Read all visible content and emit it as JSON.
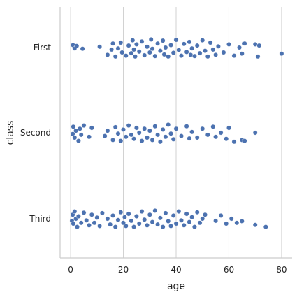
{
  "chart_data": {
    "type": "scatter",
    "style": "categorical strip plot with horizontal jitter",
    "title": "",
    "xlabel": "age",
    "ylabel": "class",
    "xlim": [
      -4,
      84
    ],
    "x_ticks": [
      0,
      20,
      40,
      60,
      80
    ],
    "categories": [
      "First",
      "Second",
      "Third"
    ],
    "grid": "vertical gridlines",
    "legend": "none",
    "marker_color": "#4c72b0",
    "series": [
      {
        "category": "First",
        "points": [
          [
            0.9,
            -0.06
          ],
          [
            1.5,
            0.02
          ],
          [
            2.3,
            -0.04
          ],
          [
            4.5,
            0.03
          ],
          [
            11,
            -0.02
          ],
          [
            14,
            0.18
          ],
          [
            15.5,
            0.05
          ],
          [
            16,
            -0.1
          ],
          [
            17,
            0.22
          ],
          [
            18,
            0.02
          ],
          [
            19,
            -0.12
          ],
          [
            19.5,
            0.12
          ],
          [
            21,
            0.2
          ],
          [
            22,
            -0.05
          ],
          [
            23,
            0.14
          ],
          [
            23.5,
            -0.18
          ],
          [
            24,
            0.05
          ],
          [
            24.5,
            0.22
          ],
          [
            25,
            -0.08
          ],
          [
            26,
            0.1
          ],
          [
            27,
            -0.15
          ],
          [
            28,
            0.19
          ],
          [
            29,
            -0.02
          ],
          [
            30,
            0.12
          ],
          [
            30.5,
            -0.2
          ],
          [
            31,
            0.03
          ],
          [
            32,
            0.21
          ],
          [
            33,
            -0.1
          ],
          [
            34,
            0.08
          ],
          [
            35,
            -0.17
          ],
          [
            35.5,
            0.17
          ],
          [
            36,
            0.0
          ],
          [
            37,
            0.22
          ],
          [
            38,
            -0.06
          ],
          [
            39,
            0.13
          ],
          [
            40,
            -0.19
          ],
          [
            41,
            0.06
          ],
          [
            42,
            0.2
          ],
          [
            43,
            -0.09
          ],
          [
            44,
            0.11
          ],
          [
            45,
            -0.14
          ],
          [
            45.5,
            0.18
          ],
          [
            46,
            0.02
          ],
          [
            47,
            0.21
          ],
          [
            48,
            -0.05
          ],
          [
            49,
            0.14
          ],
          [
            50,
            -0.18
          ],
          [
            51,
            0.08
          ],
          [
            52,
            0.22
          ],
          [
            53,
            -0.12
          ],
          [
            54,
            0.05
          ],
          [
            55,
            0.18
          ],
          [
            56,
            -0.03
          ],
          [
            58,
            0.12
          ],
          [
            60,
            -0.08
          ],
          [
            62,
            0.2
          ],
          [
            64,
            0.0
          ],
          [
            65,
            0.15
          ],
          [
            66,
            -0.1
          ],
          [
            70,
            -0.08
          ],
          [
            71,
            0.22
          ],
          [
            71.5,
            -0.05
          ],
          [
            80,
            0.15
          ]
        ]
      },
      {
        "category": "Second",
        "points": [
          [
            0.8,
            0.03
          ],
          [
            1,
            -0.15
          ],
          [
            1.5,
            0.12
          ],
          [
            2,
            -0.05
          ],
          [
            3,
            0.2
          ],
          [
            3.5,
            -0.1
          ],
          [
            4,
            0.05
          ],
          [
            5,
            -0.18
          ],
          [
            7,
            0.1
          ],
          [
            8,
            -0.12
          ],
          [
            13,
            0.08
          ],
          [
            14,
            -0.05
          ],
          [
            16,
            0.18
          ],
          [
            17,
            -0.14
          ],
          [
            18,
            0.02
          ],
          [
            19,
            0.2
          ],
          [
            20,
            -0.08
          ],
          [
            21,
            0.1
          ],
          [
            22,
            -0.18
          ],
          [
            23,
            0.05
          ],
          [
            24,
            0.15
          ],
          [
            25,
            -0.12
          ],
          [
            26,
            0.0
          ],
          [
            27,
            0.2
          ],
          [
            28,
            -0.1
          ],
          [
            29,
            0.12
          ],
          [
            30,
            -0.05
          ],
          [
            31,
            0.18
          ],
          [
            32,
            -0.16
          ],
          [
            33,
            0.05
          ],
          [
            34,
            0.22
          ],
          [
            35,
            -0.08
          ],
          [
            36,
            0.1
          ],
          [
            37,
            -0.2
          ],
          [
            38,
            0.02
          ],
          [
            39,
            0.16
          ],
          [
            40,
            -0.1
          ],
          [
            42,
            0.08
          ],
          [
            44,
            -0.16
          ],
          [
            45,
            0.14
          ],
          [
            46,
            -0.02
          ],
          [
            48,
            0.12
          ],
          [
            50,
            -0.1
          ],
          [
            52,
            0.05
          ],
          [
            54,
            -0.15
          ],
          [
            55,
            0.1
          ],
          [
            57,
            0.0
          ],
          [
            59,
            0.15
          ],
          [
            60,
            -0.12
          ],
          [
            62,
            0.22
          ],
          [
            65,
            0.18
          ],
          [
            66,
            0.2
          ],
          [
            70,
            0.0
          ]
        ]
      },
      {
        "category": "Third",
        "points": [
          [
            0.5,
            0.05
          ],
          [
            0.8,
            -0.1
          ],
          [
            1,
            0.12
          ],
          [
            1.5,
            -0.18
          ],
          [
            2,
            0.0
          ],
          [
            2.5,
            0.2
          ],
          [
            3,
            -0.06
          ],
          [
            4,
            0.1
          ],
          [
            5,
            -0.15
          ],
          [
            6,
            0.04
          ],
          [
            7,
            0.16
          ],
          [
            8,
            -0.1
          ],
          [
            9,
            0.1
          ],
          [
            10,
            -0.03
          ],
          [
            11,
            0.18
          ],
          [
            12,
            -0.14
          ],
          [
            14,
            0.0
          ],
          [
            15,
            0.14
          ],
          [
            16,
            -0.08
          ],
          [
            17,
            0.2
          ],
          [
            18,
            0.03
          ],
          [
            19,
            -0.16
          ],
          [
            20,
            0.1
          ],
          [
            20.5,
            -0.04
          ],
          [
            21,
            0.18
          ],
          [
            22,
            -0.12
          ],
          [
            23,
            0.05
          ],
          [
            24,
            0.2
          ],
          [
            25,
            -0.06
          ],
          [
            26,
            0.12
          ],
          [
            27,
            -0.18
          ],
          [
            28,
            0.02
          ],
          [
            29,
            0.16
          ],
          [
            30,
            -0.1
          ],
          [
            31,
            0.08
          ],
          [
            32,
            -0.2
          ],
          [
            33,
            0.14
          ],
          [
            34,
            -0.02
          ],
          [
            35,
            0.2
          ],
          [
            36,
            -0.14
          ],
          [
            37,
            0.06
          ],
          [
            38,
            0.18
          ],
          [
            39,
            -0.08
          ],
          [
            40,
            0.12
          ],
          [
            41,
            -0.18
          ],
          [
            42,
            0.04
          ],
          [
            43,
            0.16
          ],
          [
            44,
            -0.12
          ],
          [
            45,
            0.08
          ],
          [
            46,
            -0.04
          ],
          [
            47,
            0.2
          ],
          [
            48,
            -0.16
          ],
          [
            49,
            0.1
          ],
          [
            50,
            0.0
          ],
          [
            51,
            -0.1
          ],
          [
            55,
            0.05
          ],
          [
            57,
            -0.08
          ],
          [
            59,
            0.12
          ],
          [
            61,
            0.0
          ],
          [
            63,
            0.1
          ],
          [
            65,
            0.06
          ],
          [
            70,
            0.15
          ],
          [
            74,
            0.2
          ]
        ]
      }
    ]
  }
}
